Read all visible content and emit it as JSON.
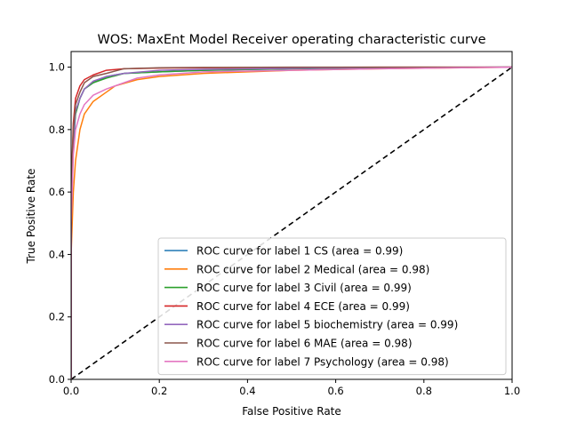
{
  "chart_data": {
    "type": "line",
    "title": "WOS: MaxEnt Model Receiver operating characteristic curve",
    "xlabel": "False Positive Rate",
    "ylabel": "True Positive Rate",
    "xlim": [
      0,
      1
    ],
    "ylim": [
      0,
      1.05
    ],
    "xticks": [
      0,
      0.2,
      0.4,
      0.6,
      0.8,
      1.0
    ],
    "xtick_labels": [
      "0.0",
      "0.2",
      "0.4",
      "0.6",
      "0.8",
      "1.0"
    ],
    "yticks": [
      0,
      0.2,
      0.4,
      0.6,
      0.8,
      1.0
    ],
    "ytick_labels": [
      "0.0",
      "0.2",
      "0.4",
      "0.6",
      "0.8",
      "1.0"
    ],
    "grid": false,
    "legend_position": "lower-right",
    "diagonal": {
      "x": [
        0,
        1
      ],
      "y": [
        0,
        1
      ],
      "color": "#000000",
      "style": "dashed"
    },
    "series": [
      {
        "name": "ROC curve for label 1 CS (area = 0.99)",
        "color": "#1f77b4",
        "x": [
          0,
          0,
          0.005,
          0.01,
          0.02,
          0.03,
          0.05,
          0.08,
          0.12,
          0.2,
          0.3,
          0.5,
          0.7,
          1.0
        ],
        "y": [
          0,
          0.5,
          0.75,
          0.85,
          0.9,
          0.93,
          0.95,
          0.97,
          0.98,
          0.985,
          0.99,
          0.995,
          0.998,
          1.0
        ]
      },
      {
        "name": "ROC curve for label 2 Medical (area = 0.98)",
        "color": "#ff7f0e",
        "x": [
          0,
          0,
          0.005,
          0.01,
          0.02,
          0.03,
          0.05,
          0.08,
          0.1,
          0.15,
          0.2,
          0.3,
          0.5,
          0.7,
          1.0
        ],
        "y": [
          0,
          0.4,
          0.6,
          0.7,
          0.8,
          0.85,
          0.89,
          0.92,
          0.94,
          0.96,
          0.97,
          0.98,
          0.99,
          0.995,
          1.0
        ]
      },
      {
        "name": "ROC curve for label 3 Civil (area = 0.99)",
        "color": "#2ca02c",
        "x": [
          0,
          0,
          0.005,
          0.01,
          0.02,
          0.03,
          0.05,
          0.08,
          0.12,
          0.2,
          0.3,
          0.5,
          0.7,
          1.0
        ],
        "y": [
          0,
          0.55,
          0.78,
          0.85,
          0.9,
          0.93,
          0.95,
          0.965,
          0.98,
          0.985,
          0.99,
          0.995,
          0.998,
          1.0
        ]
      },
      {
        "name": "ROC curve for label 4 ECE (area = 0.99)",
        "color": "#d62728",
        "x": [
          0,
          0,
          0.005,
          0.01,
          0.02,
          0.03,
          0.05,
          0.08,
          0.12,
          0.2,
          0.3,
          0.5,
          0.7,
          1.0
        ],
        "y": [
          0,
          0.6,
          0.82,
          0.9,
          0.94,
          0.96,
          0.975,
          0.99,
          0.995,
          0.997,
          0.998,
          0.999,
          1.0,
          1.0
        ]
      },
      {
        "name": "ROC curve for label 5 biochemistry (area = 0.99)",
        "color": "#9467bd",
        "x": [
          0,
          0,
          0.005,
          0.01,
          0.02,
          0.03,
          0.05,
          0.08,
          0.12,
          0.2,
          0.3,
          0.5,
          0.7,
          1.0
        ],
        "y": [
          0,
          0.55,
          0.78,
          0.86,
          0.9,
          0.93,
          0.955,
          0.97,
          0.98,
          0.99,
          0.993,
          0.996,
          0.999,
          1.0
        ]
      },
      {
        "name": "ROC curve for label 6 MAE (area = 0.98)",
        "color": "#8c564b",
        "x": [
          0,
          0,
          0.005,
          0.01,
          0.02,
          0.03,
          0.05,
          0.08,
          0.12,
          0.2,
          0.3,
          0.5,
          0.7,
          1.0
        ],
        "y": [
          0,
          0.58,
          0.8,
          0.88,
          0.92,
          0.95,
          0.97,
          0.98,
          0.995,
          0.998,
          0.999,
          1.0,
          1.0,
          1.0
        ]
      },
      {
        "name": "ROC curve for label 7 Psychology  (area = 0.98)",
        "color": "#e377c2",
        "x": [
          0,
          0,
          0.005,
          0.01,
          0.02,
          0.03,
          0.05,
          0.08,
          0.12,
          0.15,
          0.2,
          0.3,
          0.5,
          0.7,
          1.0
        ],
        "y": [
          0,
          0.5,
          0.72,
          0.8,
          0.85,
          0.88,
          0.91,
          0.93,
          0.95,
          0.965,
          0.975,
          0.985,
          0.99,
          0.995,
          1.0
        ]
      }
    ]
  }
}
